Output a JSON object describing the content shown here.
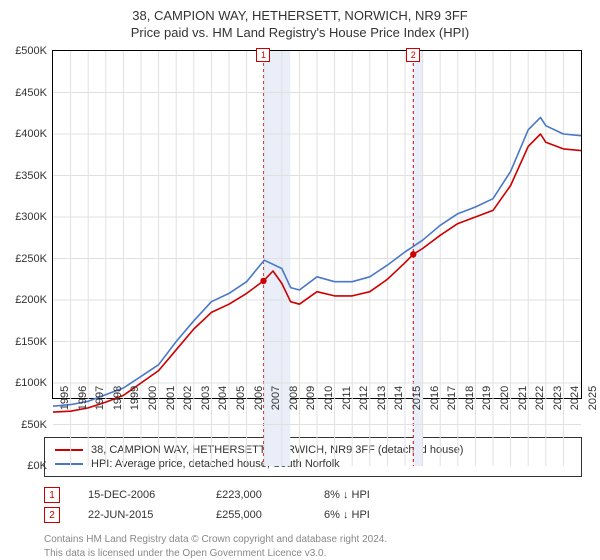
{
  "title_line1": "38, CAMPION WAY, HETHERSETT, NORWICH, NR9 3FF",
  "title_line2": "Price paid vs. HM Land Registry's House Price Index (HPI)",
  "chart": {
    "type": "line",
    "background_color": "#ffffff",
    "border_color": "#000000",
    "ylim": [
      0,
      500
    ],
    "ytick_step": 50,
    "y_prefix": "£",
    "y_suffix": "K",
    "x_years": [
      1995,
      1996,
      1997,
      1998,
      1999,
      2000,
      2001,
      2002,
      2003,
      2004,
      2005,
      2006,
      2007,
      2008,
      2009,
      2010,
      2011,
      2012,
      2013,
      2014,
      2015,
      2016,
      2017,
      2018,
      2019,
      2020,
      2021,
      2022,
      2023,
      2024,
      2025
    ],
    "grid_color": "#e0e0e0",
    "bands": [
      {
        "label": "1",
        "x_start": 2006.96,
        "x_end": 2008.48,
        "fill": "#e9eef8",
        "border": "#c00",
        "border_dash": "3,3"
      },
      {
        "label": "2",
        "x_start": 2015.47,
        "x_end": 2016.0,
        "fill": "#e9eef8",
        "border": "#c00",
        "border_dash": "3,3"
      }
    ],
    "series": [
      {
        "name": "subject",
        "label": "38, CAMPION WAY, HETHERSETT, NORWICH, NR9 3FF (detached house)",
        "color": "#cc0000",
        "width": 1.6,
        "points": [
          [
            1995,
            65
          ],
          [
            1996,
            66
          ],
          [
            1997,
            70
          ],
          [
            1998,
            77
          ],
          [
            1999,
            85
          ],
          [
            2000,
            100
          ],
          [
            2001,
            115
          ],
          [
            2002,
            140
          ],
          [
            2003,
            165
          ],
          [
            2004,
            185
          ],
          [
            2005,
            195
          ],
          [
            2006,
            208
          ],
          [
            2006.96,
            223
          ],
          [
            2007.5,
            235
          ],
          [
            2008,
            220
          ],
          [
            2008.5,
            198
          ],
          [
            2009,
            195
          ],
          [
            2010,
            210
          ],
          [
            2011,
            205
          ],
          [
            2012,
            205
          ],
          [
            2013,
            210
          ],
          [
            2014,
            225
          ],
          [
            2015,
            245
          ],
          [
            2015.47,
            255
          ],
          [
            2016,
            262
          ],
          [
            2017,
            278
          ],
          [
            2018,
            292
          ],
          [
            2019,
            300
          ],
          [
            2020,
            308
          ],
          [
            2021,
            338
          ],
          [
            2022,
            385
          ],
          [
            2022.7,
            400
          ],
          [
            2023,
            390
          ],
          [
            2024,
            382
          ],
          [
            2025,
            380
          ]
        ]
      },
      {
        "name": "hpi",
        "label": "HPI: Average price, detached house, South Norfolk",
        "color": "#4a78c8",
        "width": 1.6,
        "points": [
          [
            1995,
            72
          ],
          [
            1996,
            74
          ],
          [
            1997,
            78
          ],
          [
            1998,
            86
          ],
          [
            1999,
            94
          ],
          [
            2000,
            108
          ],
          [
            2001,
            122
          ],
          [
            2002,
            150
          ],
          [
            2003,
            175
          ],
          [
            2004,
            198
          ],
          [
            2005,
            208
          ],
          [
            2006,
            222
          ],
          [
            2007,
            248
          ],
          [
            2008,
            238
          ],
          [
            2008.5,
            215
          ],
          [
            2009,
            212
          ],
          [
            2010,
            228
          ],
          [
            2011,
            222
          ],
          [
            2012,
            222
          ],
          [
            2013,
            228
          ],
          [
            2014,
            242
          ],
          [
            2015,
            258
          ],
          [
            2016,
            272
          ],
          [
            2017,
            290
          ],
          [
            2018,
            304
          ],
          [
            2019,
            312
          ],
          [
            2020,
            322
          ],
          [
            2021,
            355
          ],
          [
            2022,
            405
          ],
          [
            2022.7,
            420
          ],
          [
            2023,
            410
          ],
          [
            2024,
            400
          ],
          [
            2025,
            398
          ]
        ]
      }
    ],
    "sale_markers": [
      {
        "x": 2006.96,
        "y": 223,
        "color": "#cc0000",
        "radius": 3.2
      },
      {
        "x": 2015.47,
        "y": 255,
        "color": "#cc0000",
        "radius": 3.2
      }
    ]
  },
  "legend": {
    "items": [
      {
        "color": "#cc0000",
        "text": "38, CAMPION WAY, HETHERSETT, NORWICH, NR9 3FF (detached house)"
      },
      {
        "color": "#4a78c8",
        "text": "HPI: Average price, detached house, South Norfolk"
      }
    ]
  },
  "sales": [
    {
      "marker": "1",
      "date": "15-DEC-2006",
      "price": "£223,000",
      "diff": "8%  ↓  HPI"
    },
    {
      "marker": "2",
      "date": "22-JUN-2015",
      "price": "£255,000",
      "diff": "6%  ↓  HPI"
    }
  ],
  "footer_line1": "Contains HM Land Registry data © Crown copyright and database right 2024.",
  "footer_line2": "This data is licensed under the Open Government Licence v3.0."
}
